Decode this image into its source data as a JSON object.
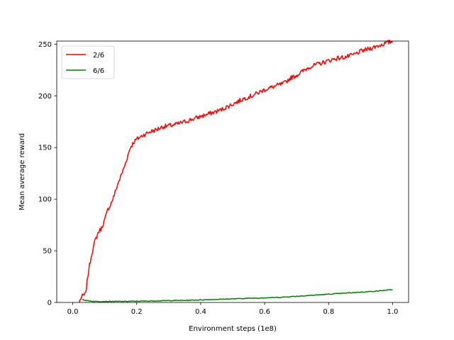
{
  "chart_data": {
    "type": "line",
    "title": "",
    "xlabel": "Environment steps (1e8)",
    "ylabel": "Mean average reward",
    "xlim": [
      -0.05,
      1.05
    ],
    "ylim": [
      0,
      253
    ],
    "xticks": [
      0.0,
      0.2,
      0.4,
      0.6,
      0.8,
      1.0
    ],
    "xtick_labels": [
      "0.0",
      "0.2",
      "0.4",
      "0.6",
      "0.8",
      "1.0"
    ],
    "yticks": [
      0,
      50,
      100,
      150,
      200,
      250
    ],
    "ytick_labels": [
      "0",
      "50",
      "100",
      "150",
      "200",
      "250"
    ],
    "grid": false,
    "legend": "top-left",
    "series": [
      {
        "name": "2/6",
        "color": "#ff0000",
        "x": [
          0.02,
          0.025,
          0.03,
          0.04,
          0.045,
          0.05,
          0.06,
          0.07,
          0.08,
          0.09,
          0.1,
          0.11,
          0.12,
          0.13,
          0.14,
          0.15,
          0.16,
          0.17,
          0.18,
          0.19,
          0.2,
          0.21,
          0.22,
          0.24,
          0.26,
          0.28,
          0.3,
          0.32,
          0.34,
          0.36,
          0.38,
          0.4,
          0.42,
          0.44,
          0.46,
          0.48,
          0.5,
          0.52,
          0.54,
          0.56,
          0.58,
          0.6,
          0.62,
          0.64,
          0.66,
          0.68,
          0.7,
          0.72,
          0.74,
          0.76,
          0.78,
          0.8,
          0.82,
          0.84,
          0.86,
          0.88,
          0.9,
          0.92,
          0.94,
          0.96,
          0.98,
          1.0
        ],
        "values": [
          0,
          4,
          6,
          8,
          20,
          32,
          48,
          60,
          68,
          72,
          80,
          90,
          96,
          104,
          114,
          122,
          130,
          140,
          150,
          155,
          158,
          160,
          162,
          165,
          167,
          170,
          171,
          172,
          174,
          176,
          178,
          180,
          182,
          184,
          186,
          189,
          192,
          195,
          198,
          200,
          203,
          206,
          208,
          210,
          212,
          217,
          220,
          224,
          228,
          230,
          232,
          234,
          236,
          237,
          238,
          240,
          243,
          245,
          247,
          249,
          251,
          253
        ]
      },
      {
        "name": "6/6",
        "color": "#008000",
        "x": [
          0.03,
          0.04,
          0.05,
          0.07,
          0.1,
          0.15,
          0.2,
          0.25,
          0.3,
          0.35,
          0.4,
          0.45,
          0.5,
          0.55,
          0.6,
          0.65,
          0.7,
          0.75,
          0.8,
          0.85,
          0.9,
          0.95,
          1.0
        ],
        "values": [
          3,
          2,
          1.5,
          1,
          1,
          1,
          1.2,
          1.5,
          1.8,
          2,
          2.5,
          3,
          3.5,
          4,
          4.5,
          5,
          6,
          7,
          8,
          9,
          10,
          11,
          12.5
        ]
      }
    ]
  }
}
